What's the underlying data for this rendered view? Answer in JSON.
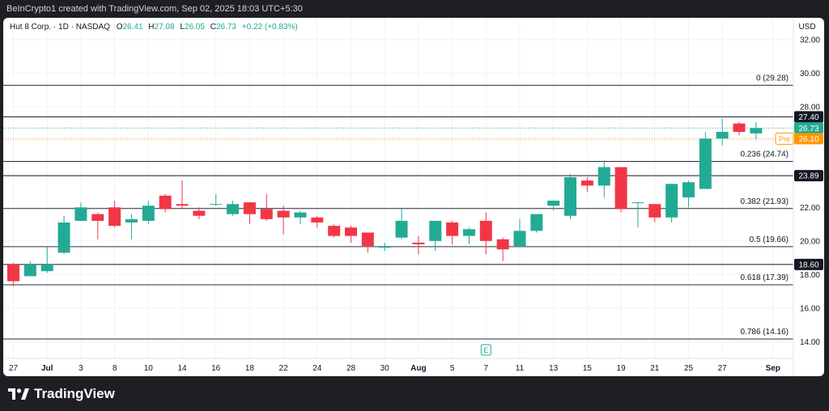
{
  "header": {
    "credit": "BeInCrypto1 created with TradingView.com, Sep 02, 2025 18:03 UTC+5:30"
  },
  "legend": {
    "symbol": "Hut 8 Corp. · 1D · NASDAQ",
    "o_label": "O",
    "o_value": "26.41",
    "h_label": "H",
    "h_value": "27.08",
    "l_label": "L",
    "l_value": "26.05",
    "c_label": "C",
    "c_value": "26.73",
    "change": "+0.22 (+0.83%)"
  },
  "footer": {
    "logo_text": "TradingView"
  },
  "colors": {
    "up": "#22ab94",
    "down": "#f23645",
    "pre": "#ff9800",
    "text": "#131722",
    "grid": "#f0f3fa"
  },
  "chart_data": {
    "type": "candlestick",
    "y_axis": {
      "unit": "USD",
      "ticks": [
        14,
        16,
        18,
        20,
        22,
        24,
        26,
        28,
        30,
        32
      ],
      "tick_labels": [
        "14.00",
        "16.00",
        "18.00",
        "20.00",
        "22.00",
        "24.00",
        "26.00",
        "28.00",
        "30.00",
        "32.00"
      ],
      "ylim": [
        13.0,
        33.3
      ]
    },
    "x_axis": {
      "labels": [
        {
          "text": "27",
          "index": 0
        },
        {
          "text": "Jul",
          "index": 2,
          "bold": true
        },
        {
          "text": "3",
          "index": 4
        },
        {
          "text": "8",
          "index": 6
        },
        {
          "text": "10",
          "index": 8
        },
        {
          "text": "14",
          "index": 10
        },
        {
          "text": "16",
          "index": 12
        },
        {
          "text": "18",
          "index": 14
        },
        {
          "text": "22",
          "index": 16
        },
        {
          "text": "24",
          "index": 18
        },
        {
          "text": "28",
          "index": 20
        },
        {
          "text": "30",
          "index": 22
        },
        {
          "text": "Aug",
          "index": 24,
          "bold": true
        },
        {
          "text": "5",
          "index": 26
        },
        {
          "text": "7",
          "index": 28
        },
        {
          "text": "11",
          "index": 30
        },
        {
          "text": "13",
          "index": 32
        },
        {
          "text": "15",
          "index": 34
        },
        {
          "text": "19",
          "index": 36
        },
        {
          "text": "21",
          "index": 38
        },
        {
          "text": "25",
          "index": 40
        },
        {
          "text": "27",
          "index": 42
        },
        {
          "text": "Sep",
          "index": 45,
          "bold": true
        }
      ]
    },
    "candles": [
      {
        "o": 18.6,
        "h": 18.7,
        "l": 17.3,
        "c": 17.6
      },
      {
        "o": 17.9,
        "h": 18.8,
        "l": 17.9,
        "c": 18.6
      },
      {
        "o": 18.2,
        "h": 19.7,
        "l": 18.1,
        "c": 18.6
      },
      {
        "o": 19.3,
        "h": 21.5,
        "l": 19.2,
        "c": 21.1
      },
      {
        "o": 21.2,
        "h": 22.3,
        "l": 21.2,
        "c": 22.0
      },
      {
        "o": 21.6,
        "h": 21.7,
        "l": 20.1,
        "c": 21.2
      },
      {
        "o": 22.0,
        "h": 22.4,
        "l": 20.8,
        "c": 20.9
      },
      {
        "o": 21.1,
        "h": 21.6,
        "l": 20.1,
        "c": 21.3
      },
      {
        "o": 21.2,
        "h": 22.4,
        "l": 21.0,
        "c": 22.1
      },
      {
        "o": 22.7,
        "h": 22.8,
        "l": 21.7,
        "c": 21.9
      },
      {
        "o": 22.2,
        "h": 23.6,
        "l": 21.9,
        "c": 22.1
      },
      {
        "o": 21.8,
        "h": 22.0,
        "l": 21.3,
        "c": 21.5
      },
      {
        "o": 22.2,
        "h": 22.8,
        "l": 22.1,
        "c": 22.2
      },
      {
        "o": 21.6,
        "h": 22.4,
        "l": 21.5,
        "c": 22.2
      },
      {
        "o": 22.3,
        "h": 22.3,
        "l": 21.0,
        "c": 21.6
      },
      {
        "o": 21.9,
        "h": 22.8,
        "l": 21.2,
        "c": 21.3
      },
      {
        "o": 21.8,
        "h": 22.1,
        "l": 20.4,
        "c": 21.4
      },
      {
        "o": 21.4,
        "h": 21.8,
        "l": 21.0,
        "c": 21.7
      },
      {
        "o": 21.4,
        "h": 21.5,
        "l": 20.8,
        "c": 21.1
      },
      {
        "o": 20.9,
        "h": 21.0,
        "l": 20.2,
        "c": 20.3
      },
      {
        "o": 20.8,
        "h": 20.9,
        "l": 19.9,
        "c": 20.3
      },
      {
        "o": 20.5,
        "h": 20.5,
        "l": 19.3,
        "c": 19.7
      },
      {
        "o": 19.6,
        "h": 19.9,
        "l": 19.4,
        "c": 19.7
      },
      {
        "o": 20.2,
        "h": 21.9,
        "l": 20.1,
        "c": 21.2
      },
      {
        "o": 19.9,
        "h": 20.3,
        "l": 19.2,
        "c": 19.8
      },
      {
        "o": 20.0,
        "h": 21.2,
        "l": 19.4,
        "c": 21.2
      },
      {
        "o": 21.1,
        "h": 21.2,
        "l": 19.8,
        "c": 20.3
      },
      {
        "o": 20.3,
        "h": 20.8,
        "l": 19.8,
        "c": 20.7
      },
      {
        "o": 21.2,
        "h": 21.7,
        "l": 19.2,
        "c": 20.0
      },
      {
        "o": 20.1,
        "h": 20.2,
        "l": 18.8,
        "c": 19.5
      },
      {
        "o": 19.7,
        "h": 21.3,
        "l": 19.7,
        "c": 20.6
      },
      {
        "o": 20.6,
        "h": 21.6,
        "l": 20.5,
        "c": 21.6
      },
      {
        "o": 22.1,
        "h": 22.3,
        "l": 21.8,
        "c": 22.4
      },
      {
        "o": 21.5,
        "h": 24.0,
        "l": 21.3,
        "c": 23.8
      },
      {
        "o": 23.6,
        "h": 23.8,
        "l": 22.9,
        "c": 23.3
      },
      {
        "o": 23.3,
        "h": 24.8,
        "l": 22.6,
        "c": 24.4
      },
      {
        "o": 24.4,
        "h": 24.4,
        "l": 21.7,
        "c": 21.9
      },
      {
        "o": 22.3,
        "h": 22.3,
        "l": 20.8,
        "c": 22.3
      },
      {
        "o": 22.2,
        "h": 22.2,
        "l": 21.1,
        "c": 21.4
      },
      {
        "o": 21.4,
        "h": 23.4,
        "l": 21.1,
        "c": 23.4
      },
      {
        "o": 22.6,
        "h": 23.6,
        "l": 22.0,
        "c": 23.5
      },
      {
        "o": 23.1,
        "h": 26.5,
        "l": 23.1,
        "c": 26.1
      },
      {
        "o": 26.1,
        "h": 27.3,
        "l": 25.7,
        "c": 26.5
      },
      {
        "o": 27.0,
        "h": 27.1,
        "l": 26.3,
        "c": 26.5
      },
      {
        "o": 26.41,
        "h": 27.08,
        "l": 26.05,
        "c": 26.73
      }
    ],
    "fib_levels": [
      {
        "label": "0 (29.28)",
        "value": 29.28
      },
      {
        "label": "0.236 (24.74)",
        "value": 24.74
      },
      {
        "label": "0.382 (21.93)",
        "value": 21.93
      },
      {
        "label": "0.5 (19.66)",
        "value": 19.66
      },
      {
        "label": "0.618 (17.39)",
        "value": 17.39
      },
      {
        "label": "0.786 (14.16)",
        "value": 14.16
      }
    ],
    "horizontal_levels": [
      {
        "value": 27.4,
        "label": "27.40"
      },
      {
        "value": 23.89,
        "label": "23.89"
      },
      {
        "value": 18.6,
        "label": "18.60"
      }
    ],
    "last_price": {
      "value": 26.73,
      "label": "26.73"
    },
    "premarket": {
      "value": 26.1,
      "label": "26.10",
      "tag": "Pre"
    },
    "earnings_marker": {
      "letter": "E",
      "index": 28
    }
  }
}
